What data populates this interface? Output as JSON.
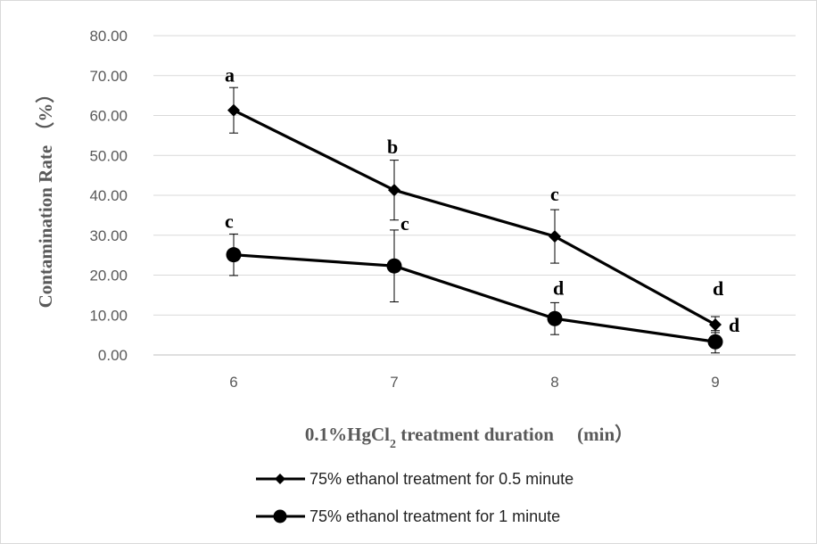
{
  "chart_data": {
    "type": "line",
    "title": "",
    "xlabel": "0.1%HgCl",
    "xlabel_sub": "2",
    "xlabel_suffix": " treatment duration 　(min）",
    "ylabel": "Contamination  Rate （%）",
    "x": [
      6,
      7,
      8,
      9
    ],
    "x_tick_labels": [
      "6",
      "7",
      "8",
      "9"
    ],
    "ylim": [
      0,
      80
    ],
    "y_tick_labels": [
      "0.00",
      "10.00",
      "20.00",
      "30.00",
      "40.00",
      "50.00",
      "60.00",
      "70.00",
      "80.00"
    ],
    "y_ticks": [
      0,
      10,
      20,
      30,
      40,
      50,
      60,
      70,
      80
    ],
    "grid": true,
    "legend_position": "bottom",
    "series": [
      {
        "name": "75% ethanol treatment for 0.5 minute",
        "marker": "diamond",
        "color": "#000000",
        "values": [
          61.3,
          41.3,
          29.7,
          7.6
        ],
        "errors": [
          5.7,
          7.5,
          6.7,
          2.0
        ],
        "labels": [
          "a",
          "b",
          "c",
          "d"
        ]
      },
      {
        "name": "75% ethanol treatment for 1 minute",
        "marker": "circle",
        "color": "#000000",
        "values": [
          25.1,
          22.3,
          9.1,
          3.3
        ],
        "errors": [
          5.2,
          9.0,
          4.0,
          2.8
        ],
        "labels": [
          "c",
          "c",
          "d",
          "d"
        ]
      }
    ]
  }
}
